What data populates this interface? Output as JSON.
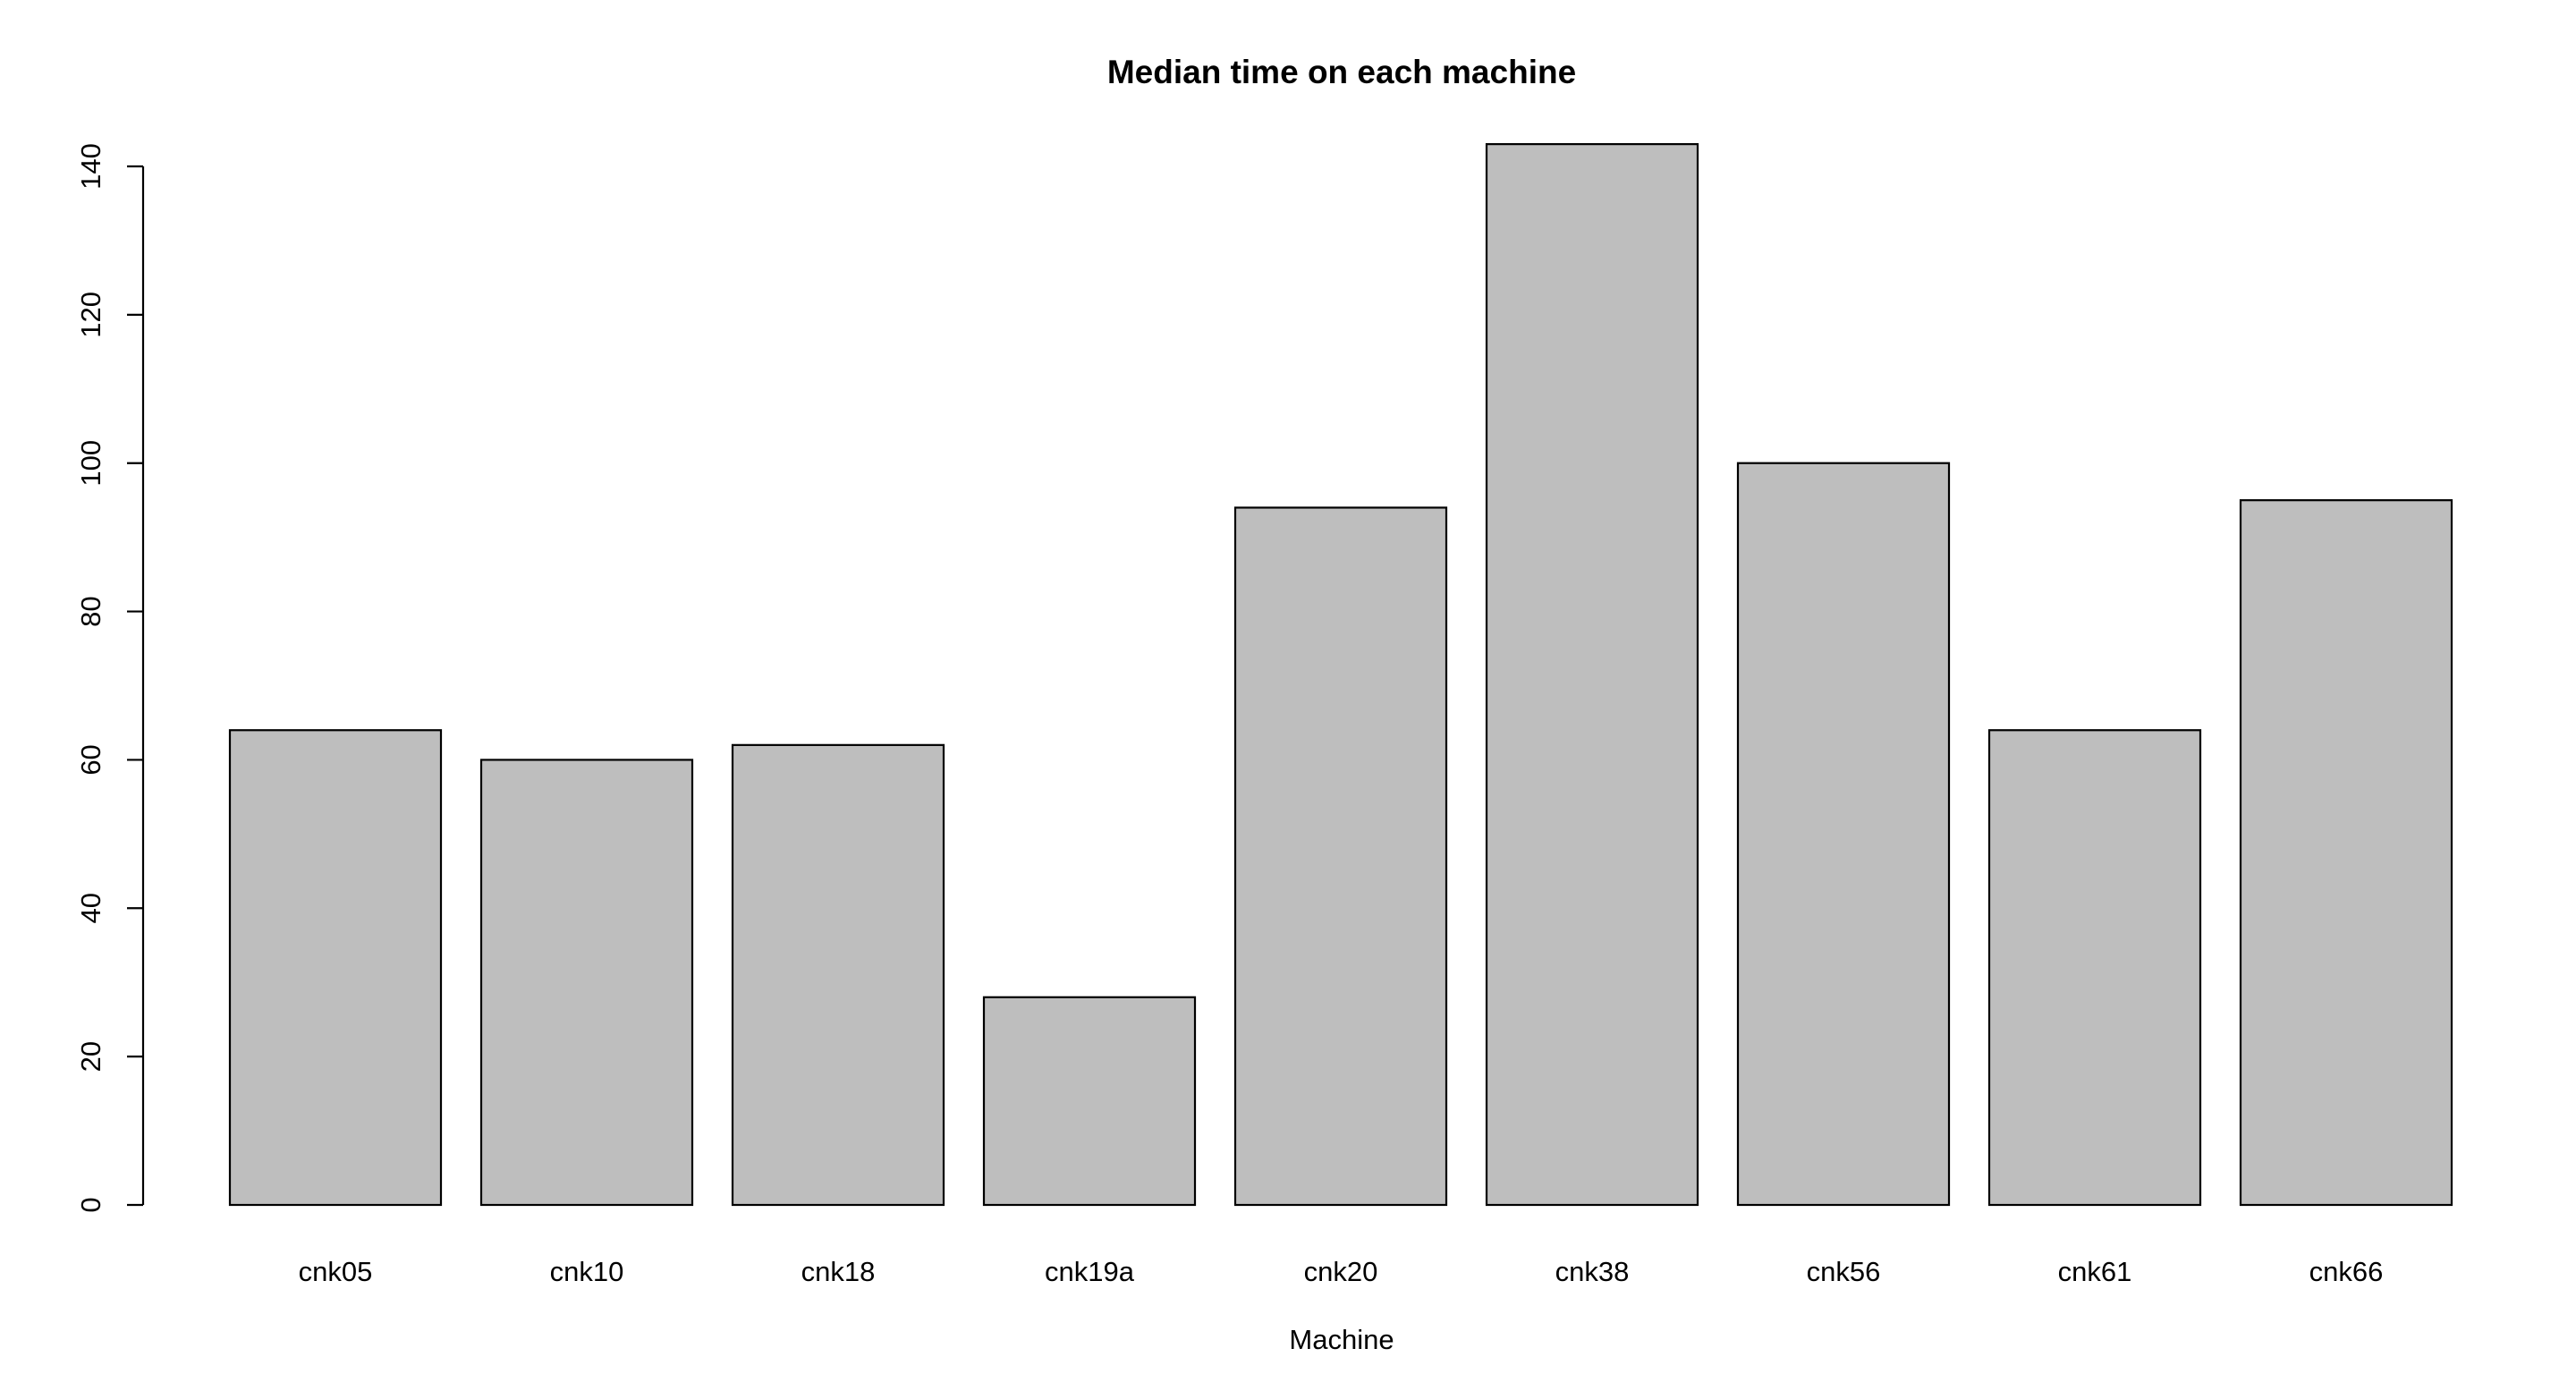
{
  "chart_data": {
    "type": "bar",
    "title": "Median time on each machine",
    "xlabel": "Machine",
    "ylabel": "",
    "categories": [
      "cnk05",
      "cnk10",
      "cnk18",
      "cnk19a",
      "cnk20",
      "cnk38",
      "cnk56",
      "cnk61",
      "cnk66"
    ],
    "values": [
      64,
      60,
      62,
      28,
      94,
      143,
      100,
      64,
      95
    ],
    "ylim": [
      0,
      140
    ],
    "yticks": [
      0,
      20,
      40,
      60,
      80,
      100,
      120,
      140
    ],
    "ytick_labels": [
      "0",
      "20",
      "40",
      "60",
      "80",
      "100",
      "120",
      "140"
    ],
    "bar_color": "#bebebe",
    "border_color": "#000000",
    "grid": false,
    "legend": "none"
  }
}
